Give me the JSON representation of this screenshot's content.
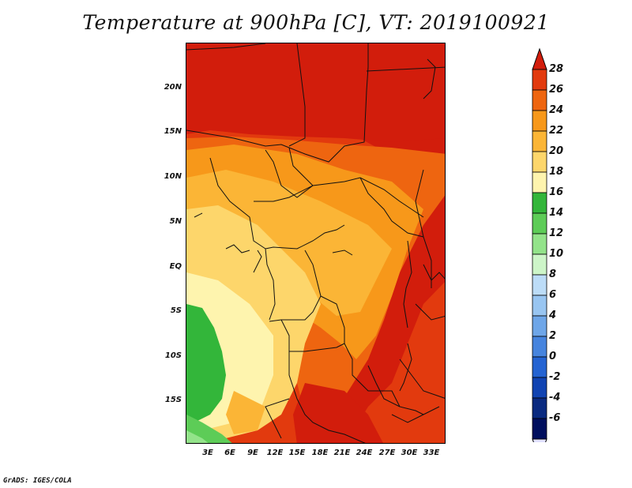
{
  "title": "Temperature at 900hPa [C], VT: 2019100921",
  "footer": "GrADS: IGES/COLA",
  "map": {
    "lat_labels": [
      "20N",
      "15N",
      "10N",
      "5N",
      "EQ",
      "5S",
      "10S",
      "15S"
    ],
    "lon_labels": [
      "3E",
      "6E",
      "9E",
      "12E",
      "15E",
      "18E",
      "21E",
      "24E",
      "27E",
      "30E",
      "33E"
    ]
  },
  "colorbar": {
    "levels": [
      "28",
      "26",
      "24",
      "22",
      "20",
      "18",
      "16",
      "14",
      "12",
      "10",
      "8",
      "6",
      "4",
      "2",
      "0",
      "-2",
      "-4",
      "-6"
    ],
    "colors": [
      "#d21d0c",
      "#e23a0e",
      "#ee6510",
      "#f7981a",
      "#fbb536",
      "#fdd66b",
      "#fef4ae",
      "#33b63a",
      "#5dcc57",
      "#93e38a",
      "#cdf5c8",
      "#bcdcf7",
      "#98c5f1",
      "#6ea6e8",
      "#4684de",
      "#2463d2",
      "#1043b2",
      "#0a2a80",
      "#000f5e",
      "#e0e0ff"
    ]
  }
}
